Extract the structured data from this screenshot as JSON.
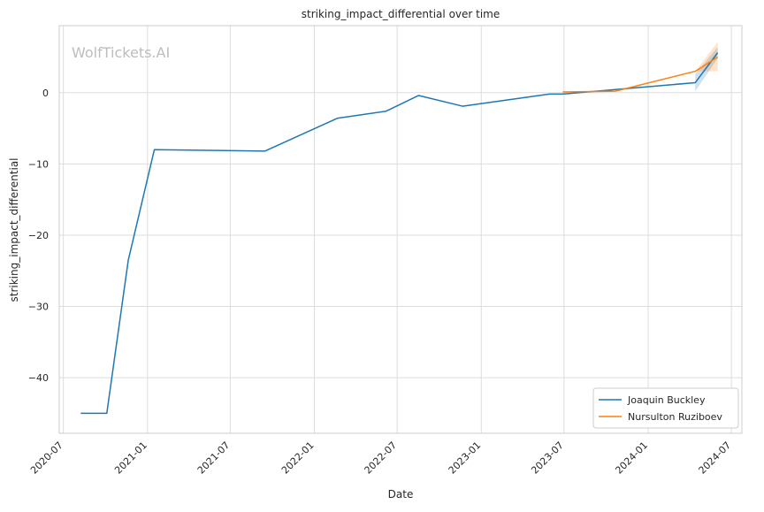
{
  "chart_data": {
    "type": "line",
    "title": "striking_impact_differential over time",
    "xlabel": "Date",
    "ylabel": "striking_impact_differential",
    "watermark": "WolfTickets.AI",
    "x_ticks": [
      "2020-07",
      "2021-01",
      "2021-07",
      "2022-01",
      "2022-07",
      "2023-01",
      "2023-07",
      "2024-01",
      "2024-07"
    ],
    "y_ticks": [
      0,
      -10,
      -20,
      -30,
      -40
    ],
    "y_tick_labels": [
      "0",
      "−10",
      "−20",
      "−30",
      "−40"
    ],
    "xlim": [
      "2020-06-22",
      "2024-07-24"
    ],
    "ylim": [
      -47.8,
      9.4
    ],
    "grid": true,
    "legend_position": "lower-right",
    "series": [
      {
        "name": "Joaquin Buckley",
        "color": "#1f77b4",
        "points": [
          {
            "x": "2020-08-08",
            "y": -45.0
          },
          {
            "x": "2020-10-04",
            "y": -45.0
          },
          {
            "x": "2020-11-20",
            "y": -23.5
          },
          {
            "x": "2021-01-16",
            "y": -8.0
          },
          {
            "x": "2021-09-15",
            "y": -8.2
          },
          {
            "x": "2022-02-20",
            "y": -3.6
          },
          {
            "x": "2022-06-07",
            "y": -2.6
          },
          {
            "x": "2022-08-17",
            "y": -0.4
          },
          {
            "x": "2022-11-21",
            "y": -1.9
          },
          {
            "x": "2023-05-30",
            "y": -0.2
          },
          {
            "x": "2023-06-28",
            "y": -0.2
          },
          {
            "x": "2024-04-13",
            "y": 1.4
          },
          {
            "x": "2024-06-01",
            "y": 5.6
          }
        ],
        "band": [
          {
            "x": "2024-04-13",
            "low": 0.2,
            "high": 2.6
          },
          {
            "x": "2024-06-01",
            "low": 4.8,
            "high": 6.4
          }
        ]
      },
      {
        "name": "Nursulton Ruziboev",
        "color": "#ff7f0e",
        "points": [
          {
            "x": "2023-06-28",
            "y": 0.1
          },
          {
            "x": "2023-10-21",
            "y": 0.2
          },
          {
            "x": "2024-04-13",
            "y": 3.0
          },
          {
            "x": "2024-06-01",
            "y": 5.0
          }
        ],
        "band": [
          {
            "x": "2024-04-13",
            "low": 3.0,
            "high": 3.0
          },
          {
            "x": "2024-06-01",
            "low": 3.0,
            "high": 7.1
          }
        ]
      }
    ]
  }
}
